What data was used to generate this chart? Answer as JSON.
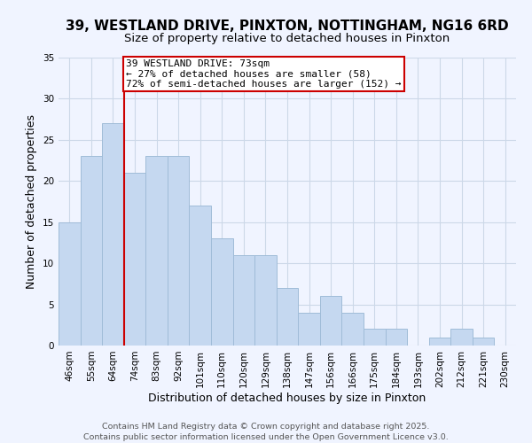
{
  "title": "39, WESTLAND DRIVE, PINXTON, NOTTINGHAM, NG16 6RD",
  "subtitle": "Size of property relative to detached houses in Pinxton",
  "xlabel": "Distribution of detached houses by size in Pinxton",
  "ylabel": "Number of detached properties",
  "bar_labels": [
    "46sqm",
    "55sqm",
    "64sqm",
    "74sqm",
    "83sqm",
    "92sqm",
    "101sqm",
    "110sqm",
    "120sqm",
    "129sqm",
    "138sqm",
    "147sqm",
    "156sqm",
    "166sqm",
    "175sqm",
    "184sqm",
    "193sqm",
    "202sqm",
    "212sqm",
    "221sqm",
    "230sqm"
  ],
  "bar_values": [
    15,
    23,
    27,
    21,
    23,
    23,
    17,
    13,
    11,
    11,
    7,
    4,
    6,
    4,
    2,
    2,
    0,
    1,
    2,
    1,
    0
  ],
  "bar_color": "#c5d8f0",
  "bar_edge_color": "#a0bcd8",
  "vline_x": 2.5,
  "vline_color": "#cc0000",
  "annotation_text": "39 WESTLAND DRIVE: 73sqm\n← 27% of detached houses are smaller (58)\n72% of semi-detached houses are larger (152) →",
  "annotation_box_edge": "#cc0000",
  "annotation_box_face": "#ffffff",
  "ylim": [
    0,
    35
  ],
  "yticks": [
    0,
    5,
    10,
    15,
    20,
    25,
    30,
    35
  ],
  "footer_line1": "Contains HM Land Registry data © Crown copyright and database right 2025.",
  "footer_line2": "Contains public sector information licensed under the Open Government Licence v3.0.",
  "title_fontsize": 11,
  "subtitle_fontsize": 9.5,
  "axis_label_fontsize": 9,
  "tick_fontsize": 7.5,
  "footer_fontsize": 6.8,
  "annotation_fontsize": 8,
  "background_color": "#f0f4ff",
  "grid_color": "#ccd8e8"
}
